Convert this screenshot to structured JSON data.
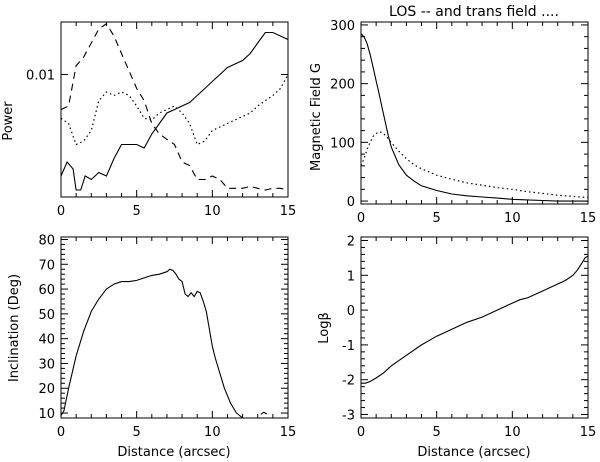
{
  "chart_data": [
    {
      "type": "line",
      "id": "power",
      "title": "",
      "xlabel": "",
      "ylabel": "Power",
      "xlim": [
        0,
        15
      ],
      "ylim": [
        0,
        1
      ],
      "xticks": [
        0,
        5,
        10,
        15
      ],
      "yticks": [
        {
          "value": 0.7,
          "label": "0.01"
        }
      ],
      "series": [
        {
          "name": "solid",
          "style": "solid",
          "x": [
            0,
            0.4,
            0.8,
            1.0,
            1.3,
            1.6,
            2.0,
            2.5,
            3.0,
            3.5,
            4.0,
            4.5,
            5.0,
            5.5,
            6.0,
            6.5,
            7.0,
            7.5,
            8.0,
            8.5,
            9.0,
            9.5,
            10.0,
            10.5,
            11.0,
            11.5,
            12.0,
            12.5,
            13.0,
            13.5,
            14.0,
            14.5,
            15.0
          ],
          "y": [
            0.12,
            0.2,
            0.16,
            0.04,
            0.04,
            0.12,
            0.1,
            0.14,
            0.12,
            0.22,
            0.3,
            0.3,
            0.3,
            0.28,
            0.36,
            0.42,
            0.48,
            0.5,
            0.52,
            0.54,
            0.58,
            0.62,
            0.66,
            0.7,
            0.74,
            0.76,
            0.78,
            0.82,
            0.88,
            0.94,
            0.94,
            0.92,
            0.9
          ]
        },
        {
          "name": "dashed",
          "style": "dashed",
          "x": [
            0,
            0.5,
            1.0,
            1.5,
            2.0,
            2.5,
            3.0,
            3.5,
            4.0,
            4.5,
            5.0,
            5.5,
            6.0,
            6.5,
            7.0,
            7.5,
            8.0,
            8.5,
            9.0,
            9.5,
            10.0,
            10.5,
            11.0,
            11.5,
            12.0,
            12.5,
            13.0,
            13.5,
            14.0,
            14.5,
            15.0
          ],
          "y": [
            0.5,
            0.52,
            0.75,
            0.8,
            0.88,
            0.96,
            0.99,
            0.92,
            0.82,
            0.72,
            0.62,
            0.55,
            0.42,
            0.36,
            0.33,
            0.3,
            0.2,
            0.18,
            0.1,
            0.1,
            0.12,
            0.1,
            0.05,
            0.05,
            0.05,
            0.06,
            0.05,
            0.04,
            0.05,
            0.05,
            0.04
          ]
        },
        {
          "name": "dotted",
          "style": "dotted",
          "x": [
            0,
            0.5,
            1.0,
            1.5,
            2.0,
            2.5,
            3.0,
            3.5,
            4.0,
            4.5,
            5.0,
            5.5,
            6.0,
            6.5,
            7.0,
            7.5,
            8.0,
            8.5,
            9.0,
            9.5,
            10.0,
            10.5,
            11.0,
            11.5,
            12.0,
            12.5,
            13.0,
            13.5,
            14.0,
            14.5,
            15.0
          ],
          "y": [
            0.45,
            0.42,
            0.3,
            0.32,
            0.38,
            0.55,
            0.6,
            0.58,
            0.6,
            0.58,
            0.52,
            0.45,
            0.44,
            0.48,
            0.5,
            0.52,
            0.48,
            0.42,
            0.3,
            0.32,
            0.38,
            0.4,
            0.42,
            0.44,
            0.46,
            0.48,
            0.52,
            0.55,
            0.58,
            0.62,
            0.7
          ]
        }
      ]
    },
    {
      "type": "line",
      "id": "field",
      "title": "LOS -- and trans field ....",
      "xlabel": "",
      "ylabel": "Magnetic Field  G",
      "xlim": [
        0,
        15
      ],
      "ylim": [
        -5,
        305
      ],
      "xticks": [
        0,
        5,
        10,
        15
      ],
      "yticks": [
        {
          "value": 0,
          "label": "0"
        },
        {
          "value": 100,
          "label": "100"
        },
        {
          "value": 200,
          "label": "200"
        },
        {
          "value": 300,
          "label": "300"
        }
      ],
      "series": [
        {
          "name": "LOS",
          "style": "solid",
          "x": [
            0,
            0.2,
            0.4,
            0.6,
            0.8,
            1.0,
            1.2,
            1.4,
            1.6,
            1.8,
            2.0,
            2.5,
            3.0,
            3.5,
            4.0,
            5.0,
            6.0,
            7.0,
            8.0,
            9.0,
            10.0,
            11.0,
            12.0,
            13.0,
            14.0,
            15.0
          ],
          "y": [
            285,
            280,
            268,
            250,
            228,
            205,
            182,
            158,
            135,
            112,
            92,
            62,
            44,
            34,
            26,
            18,
            12,
            9,
            7,
            5,
            3,
            2,
            1,
            0,
            0,
            0
          ]
        },
        {
          "name": "trans",
          "style": "dotted",
          "x": [
            0,
            0.2,
            0.4,
            0.6,
            0.8,
            1.0,
            1.2,
            1.4,
            1.6,
            2.0,
            2.5,
            3.0,
            3.5,
            4.0,
            5.0,
            6.0,
            7.0,
            8.0,
            9.0,
            10.0,
            11.0,
            12.0,
            13.0,
            14.0,
            15.0
          ],
          "y": [
            60,
            72,
            88,
            100,
            110,
            115,
            118,
            117,
            112,
            100,
            85,
            72,
            62,
            55,
            44,
            37,
            31,
            27,
            23,
            20,
            16,
            13,
            10,
            8,
            6
          ]
        }
      ]
    },
    {
      "type": "line",
      "id": "inclination",
      "title": "",
      "xlabel": "Distance (arcsec)",
      "ylabel": "Inclination (Deg)",
      "xlim": [
        0,
        15
      ],
      "ylim": [
        8,
        81
      ],
      "xticks": [
        0,
        5,
        10,
        15
      ],
      "yticks": [
        {
          "value": 10,
          "label": "10"
        },
        {
          "value": 20,
          "label": "20"
        },
        {
          "value": 30,
          "label": "30"
        },
        {
          "value": 40,
          "label": "40"
        },
        {
          "value": 50,
          "label": "50"
        },
        {
          "value": 60,
          "label": "60"
        },
        {
          "value": 70,
          "label": "70"
        },
        {
          "value": 80,
          "label": "80"
        }
      ],
      "series": [
        {
          "name": "inclination",
          "style": "solid",
          "x": [
            0,
            0.2,
            0.5,
            1.0,
            1.5,
            2.0,
            2.5,
            3.0,
            3.5,
            4.0,
            4.5,
            5.0,
            5.5,
            6.0,
            6.5,
            7.0,
            7.2,
            7.4,
            7.6,
            7.8,
            8.0,
            8.2,
            8.4,
            8.6,
            8.8,
            9.0,
            9.2,
            9.4,
            9.6,
            9.8,
            10.0,
            10.2,
            10.4,
            10.6,
            10.8,
            11.0,
            11.2,
            11.4,
            11.6,
            11.8,
            12.0
          ],
          "y": [
            9,
            11,
            20,
            33,
            43,
            51,
            56,
            60,
            62,
            63,
            63,
            63.5,
            64.5,
            65.5,
            66,
            67,
            68,
            67.5,
            66,
            64,
            63,
            58,
            57,
            58.5,
            57,
            59,
            58.5,
            55,
            51,
            44,
            37,
            32,
            28,
            24,
            20,
            17,
            14,
            12,
            10,
            9,
            8
          ]
        },
        {
          "name": "fragment",
          "style": "solid",
          "x": [
            13.2,
            13.4,
            13.6
          ],
          "y": [
            9.5,
            10.3,
            9.6
          ]
        }
      ]
    },
    {
      "type": "line",
      "id": "logbeta",
      "title": "",
      "xlabel": "Distance (arcsec)",
      "ylabel": "Logβ",
      "xlim": [
        0,
        15
      ],
      "ylim": [
        -3.1,
        2.1
      ],
      "xticks": [
        0,
        5,
        10,
        15
      ],
      "yticks": [
        {
          "value": -3,
          "label": "-3"
        },
        {
          "value": -2,
          "label": "-2"
        },
        {
          "value": -1,
          "label": "-1"
        },
        {
          "value": 0,
          "label": "0"
        },
        {
          "value": 1,
          "label": "1"
        },
        {
          "value": 2,
          "label": "2"
        }
      ],
      "series": [
        {
          "name": "logbeta",
          "style": "solid",
          "x": [
            0,
            0.3,
            0.6,
            1.0,
            1.5,
            2.0,
            3.0,
            4.0,
            5.0,
            6.0,
            7.0,
            8.0,
            9.0,
            10.0,
            10.5,
            11.0,
            12.0,
            13.0,
            13.5,
            14.0,
            14.3,
            14.6,
            14.8,
            15.0
          ],
          "y": [
            -2.1,
            -2.1,
            -2.05,
            -1.95,
            -1.8,
            -1.6,
            -1.3,
            -1.0,
            -0.75,
            -0.55,
            -0.35,
            -0.2,
            0.0,
            0.2,
            0.3,
            0.35,
            0.55,
            0.75,
            0.85,
            1.0,
            1.15,
            1.35,
            1.5,
            1.55
          ]
        }
      ]
    }
  ]
}
